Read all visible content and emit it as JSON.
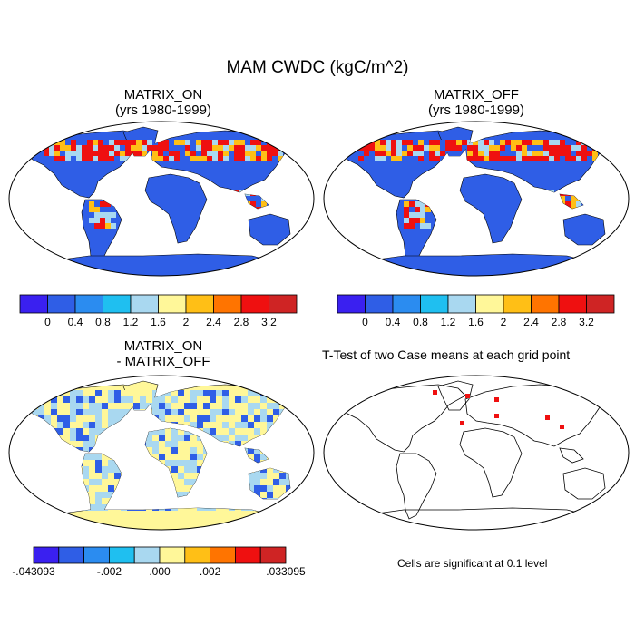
{
  "figure": {
    "title": "MAM CWDC (kgC/m^2)",
    "panels": [
      {
        "id": "matrix_on",
        "title_line1": "MATRIX_ON",
        "title_line2": "(yrs 1980-1999)"
      },
      {
        "id": "matrix_off",
        "title_line1": "MATRIX_OFF",
        "title_line2": "(yrs 1980-1999)"
      },
      {
        "id": "difference",
        "title_line1": "MATRIX_ON",
        "title_line2": "- MATRIX_OFF"
      },
      {
        "id": "ttest",
        "title_line1": "T-Test of two Case means at each grid point"
      }
    ],
    "ttest_note": "Cells are significant at 0.1 level"
  },
  "colorbars": {
    "main": {
      "colors": [
        "#3a20f0",
        "#2f5ee6",
        "#2b8cf0",
        "#1fbff0",
        "#a9d8f0",
        "#fff799",
        "#ffbf16",
        "#ff7400",
        "#ef1010",
        "#cf2424"
      ],
      "labels": [
        "0",
        "0.4",
        "0.8",
        "1.2",
        "1.6",
        "2",
        "2.4",
        "2.8",
        "3.2"
      ]
    },
    "diff": {
      "colors": [
        "#3a20f0",
        "#2f5ee6",
        "#2b8cf0",
        "#1fbff0",
        "#a9d8f0",
        "#fff799",
        "#ffbf16",
        "#ff7400",
        "#ef1010",
        "#cf2424"
      ],
      "labels": [
        "-.043093",
        "-.002",
        ".000",
        ".002",
        ".033095"
      ]
    }
  },
  "colors": {
    "land_main": "#2f5ee6",
    "land_diff": "#fff799",
    "high": "#ef1010",
    "mid": "#ffbf16",
    "light": "#a9d8f0",
    "significant": "#ef1010"
  }
}
